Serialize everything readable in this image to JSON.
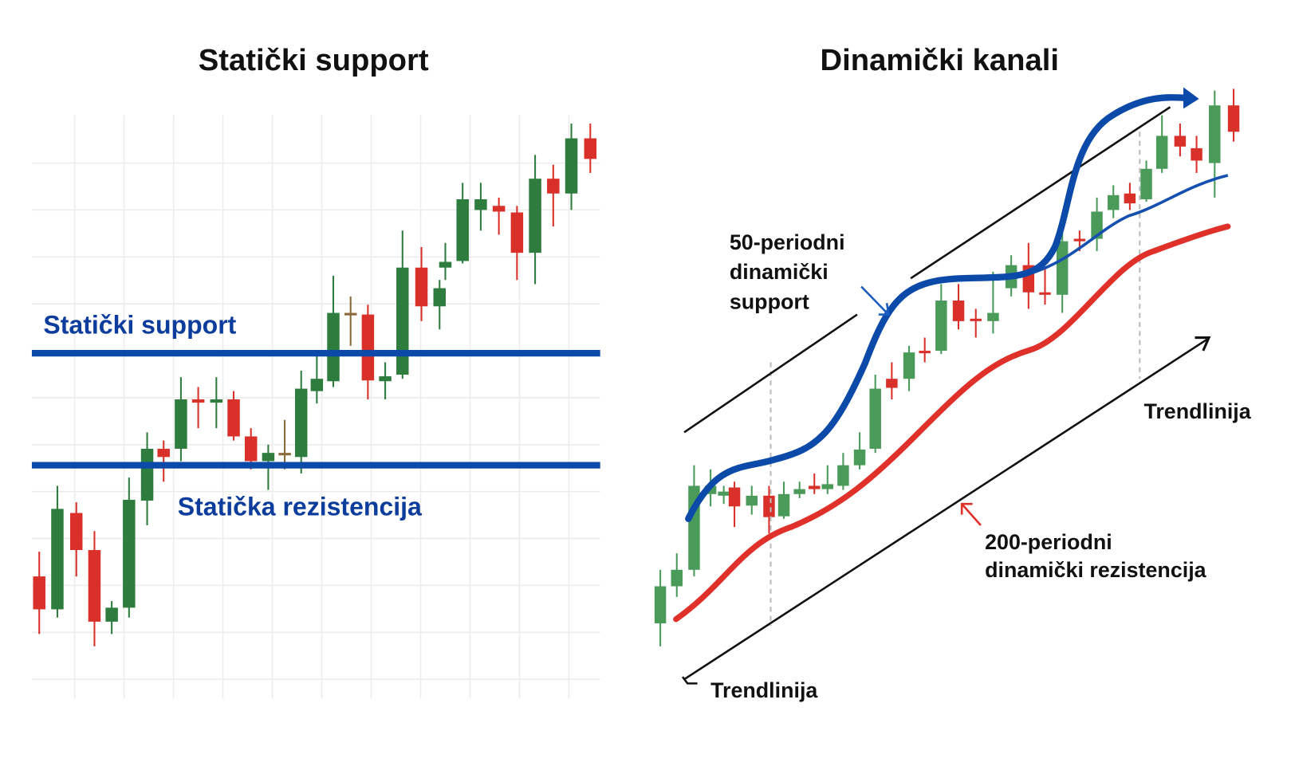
{
  "left": {
    "title": "Statički support",
    "support_label": "Statički support",
    "resistance_label": "Statička rezistencija"
  },
  "right": {
    "title": "Dinamički kanali",
    "support_label": [
      "50-periodni",
      "dinamički",
      "support"
    ],
    "trend_label_top": "Trendlinija",
    "trend_label_bottom": "Trendlinija",
    "resistance_label": [
      "200-periodni",
      "dinamički rezistencija"
    ]
  }
}
